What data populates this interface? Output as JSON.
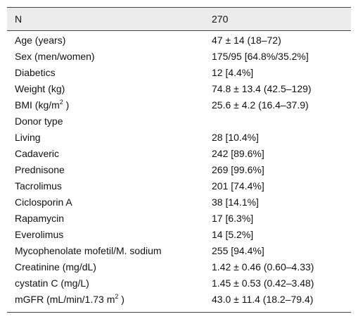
{
  "table": {
    "header": [
      "N",
      "270"
    ],
    "rows": [
      {
        "label": "Age (years)",
        "value": "47 ± 14 (18–72)"
      },
      {
        "label": "Sex (men/women)",
        "value": "175/95 [64.8%/35.2%]"
      },
      {
        "label": "Diabetics",
        "value": "12 [4.4%]"
      },
      {
        "label": "Weight (kg)",
        "value": "74.8 ± 13.4 (42.5–129)"
      },
      {
        "label": "BMI (kg/m",
        "label_sup": "2",
        "label_end": " )",
        "value": "25.6 ± 4.2 (16.4–37.9)"
      },
      {
        "label": "Donor type"
      },
      {
        "label": "Living",
        "value": "28 [10.4%]"
      },
      {
        "label": "Cadaveric",
        "value": "242 [89.6%]"
      },
      {
        "label": "Prednisone",
        "value": "269 [99.6%]"
      },
      {
        "label": "Tacrolimus",
        "value": "201 [74.4%]"
      },
      {
        "label": "Ciclosporin A",
        "value": "38 [14.1%]"
      },
      {
        "label": "Rapamycin",
        "value": "17 [6.3%]"
      },
      {
        "label": "Everolimus",
        "value": "14 [5.2%]"
      },
      {
        "label": "Mycophenolate mofetil/M. sodium",
        "value": "255 [94.4%]"
      },
      {
        "label": "Creatinine (mg/dL)",
        "value": "1.42 ± 0.46 (0.60–4.33)"
      },
      {
        "label": "cystatin C (mg/L)",
        "value": "1.45 ± 0.53 (0.42–3.48)"
      },
      {
        "label": "mGFR (mL/min/1.73 m",
        "label_sup": "2",
        "label_end": " )",
        "value": "43.0 ± 11.4 (18.2–79.4)"
      }
    ]
  }
}
